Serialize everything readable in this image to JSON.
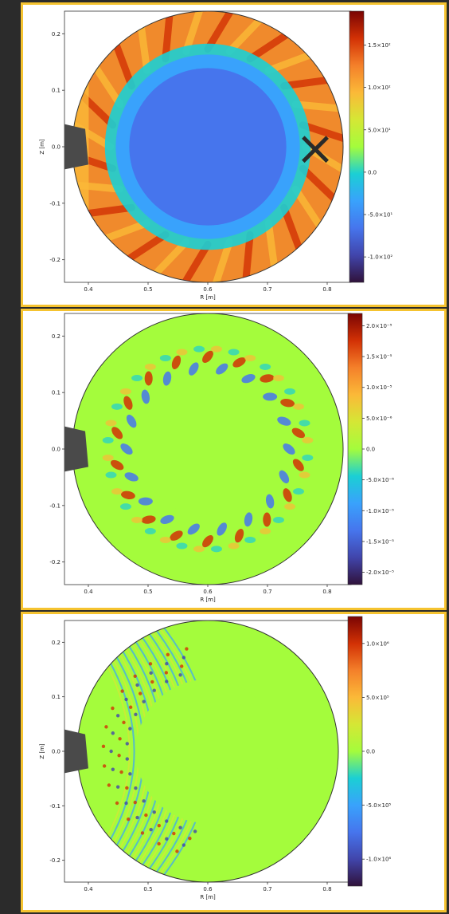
{
  "chart_data": [
    {
      "type": "heatmap",
      "description_role": "field-map-panel-1",
      "xlabel": "R [m]",
      "ylabel": "Z [m]",
      "xticks": [
        "0.4",
        "0.5",
        "0.6",
        "0.7",
        "0.8"
      ],
      "yticks": [
        "0.2",
        "0.1",
        "0.0",
        "-0.1",
        "-0.2"
      ],
      "xlim": [
        0.36,
        0.84
      ],
      "ylim": [
        -0.24,
        0.24
      ],
      "colorbar_ticks": [
        "1.5×10²",
        "1.0×10²",
        "5.0×10¹",
        "0.0",
        "-5.0×10¹",
        "-1.0×10²"
      ],
      "colorbar_range": [
        -130,
        190
      ],
      "marker": {
        "symbol": "×",
        "R": 0.78,
        "Z": 0.0
      },
      "vessel": {
        "center_R": 0.6,
        "center_Z": 0.0,
        "radius": 0.24
      },
      "antenna_limiter": {
        "R_edge": 0.36,
        "Z_range": [
          -0.04,
          0.04
        ]
      }
    },
    {
      "type": "heatmap",
      "description_role": "field-map-panel-2",
      "xlabel": "R [m]",
      "ylabel": "",
      "xticks": [
        "0.4",
        "0.5",
        "0.6",
        "0.7",
        "0.8"
      ],
      "yticks": [
        "0.2",
        "0.1",
        "0.0",
        "-0.1",
        "-0.2"
      ],
      "xlim": [
        0.36,
        0.84
      ],
      "ylim": [
        -0.24,
        0.24
      ],
      "colorbar_ticks": [
        "2.0×10⁻⁵",
        "1.5×10⁻⁵",
        "1.0×10⁻⁵",
        "5.0×10⁻⁶",
        "0.0",
        "-5.0×10⁻⁶",
        "-1.0×10⁻⁵",
        "-1.5×10⁻⁵",
        "-2.0×10⁻⁵"
      ],
      "colorbar_range": [
        -2.2e-05,
        2.2e-05
      ],
      "vessel": {
        "center_R": 0.6,
        "center_Z": 0.0,
        "radius": 0.24
      },
      "antenna_limiter": {
        "R_edge": 0.36,
        "Z_range": [
          -0.04,
          0.04
        ]
      }
    },
    {
      "type": "heatmap",
      "description_role": "field-map-panel-3",
      "xlabel": "R [m]",
      "ylabel": "Z [m]",
      "xticks": [
        "0.4",
        "0.5",
        "0.6",
        "0.7",
        "0.8"
      ],
      "yticks": [
        "0.2",
        "0.1",
        "0.0",
        "-0.1",
        "-0.2"
      ],
      "xlim": [
        0.36,
        0.84
      ],
      "ylim": [
        -0.24,
        0.24
      ],
      "colorbar_ticks": [
        "1.0×10⁶",
        "5.0×10⁵",
        "0.0",
        "-5.0×10⁵",
        "-1.0×10⁶"
      ],
      "colorbar_range": [
        -1250000,
        1250000
      ],
      "vessel": {
        "center_R": 0.6,
        "center_Z": 0.0,
        "radius": 0.24
      },
      "antenna_limiter": {
        "R_edge": 0.36,
        "Z_range": [
          -0.04,
          0.04
        ]
      }
    }
  ],
  "colors": {
    "frame": "#f5c330",
    "background": "#2b2b2b",
    "limiter": "#4a4a4a"
  }
}
